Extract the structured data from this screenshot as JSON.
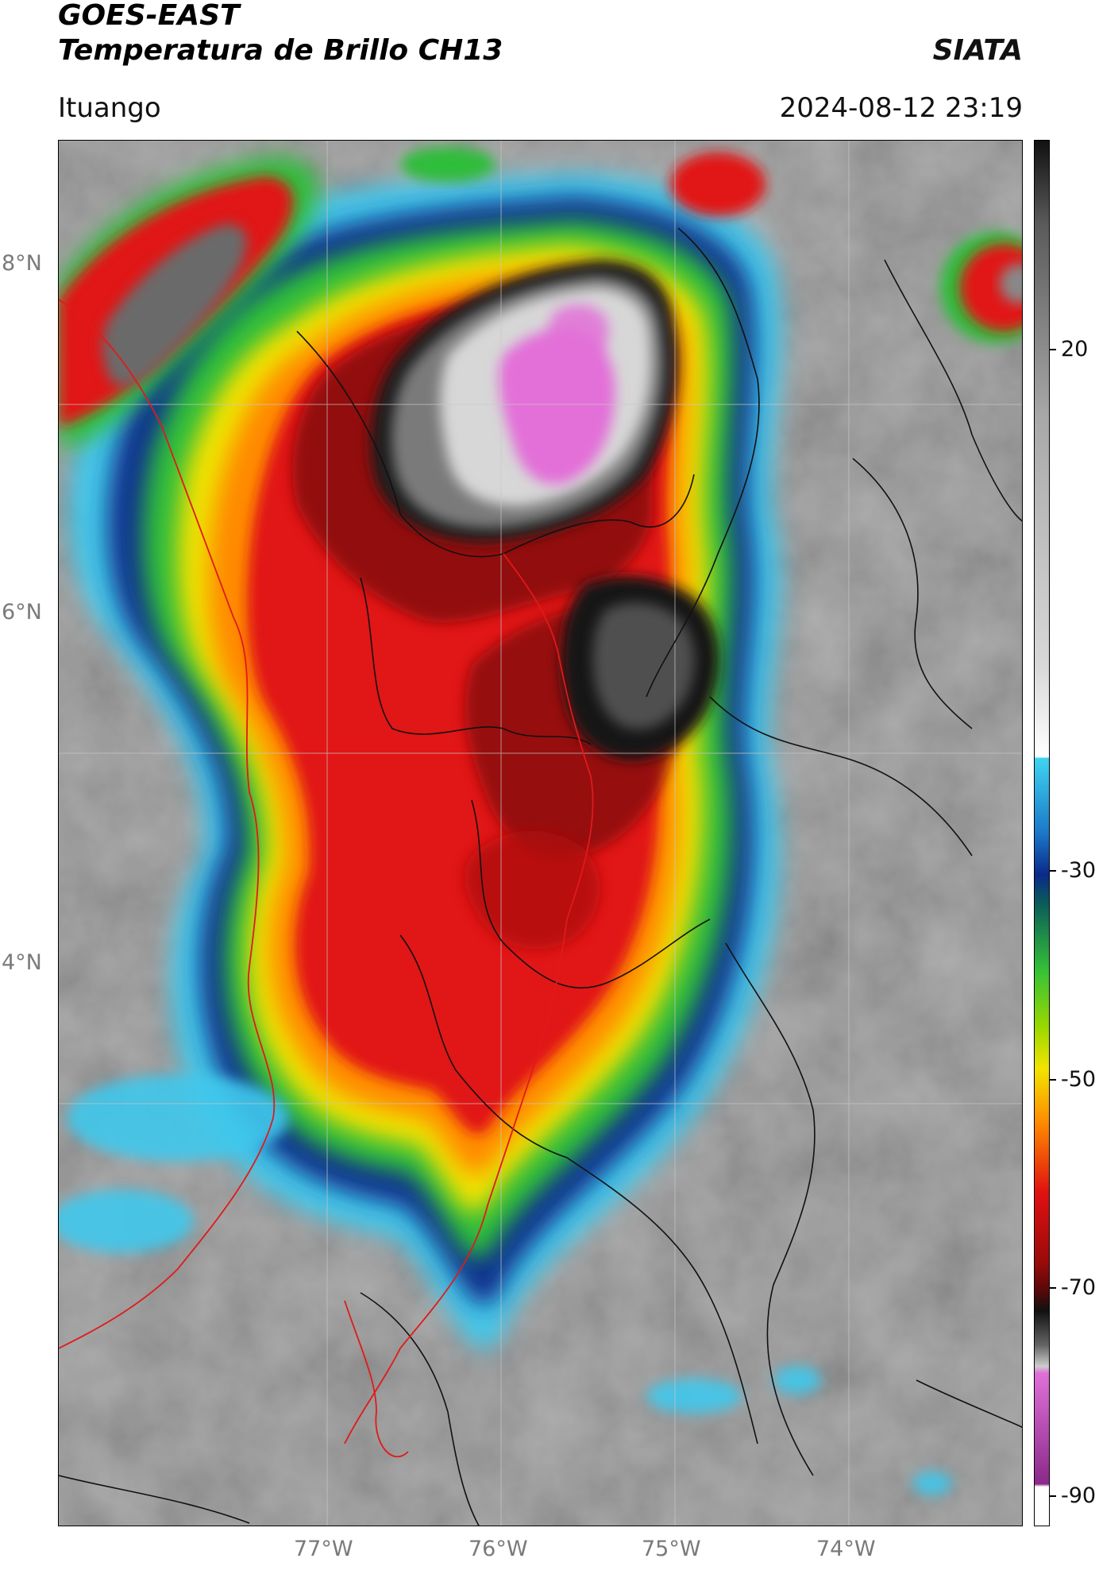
{
  "header": {
    "satellite": "GOES-EAST",
    "product": "Temperatura de Brillo CH13",
    "organization": "SIATA",
    "location": "Ituango",
    "timestamp": "2024-08-12 23:19"
  },
  "map": {
    "lat_labels": [
      "8°N",
      "6°N",
      "4°N"
    ],
    "lon_labels": [
      "77°W",
      "76°W",
      "75°W",
      "74°W"
    ],
    "extent": {
      "lon_min": -78.55,
      "lon_max": -73.0,
      "lat_min": 2.55,
      "lat_max": 9.55
    },
    "gridlines": true
  },
  "colorbar": {
    "tick_labels": [
      "20",
      "-30",
      "-50",
      "-70",
      "-90"
    ],
    "tick_values": [
      20,
      -30,
      -50,
      -70,
      -90
    ],
    "range": [
      -92,
      41
    ],
    "colors": {
      "warm_gray": "#a8a8a8",
      "cyan": "#3fd4f0",
      "dark_blue": "#0a2a8a",
      "green": "#36c236",
      "yellow": "#f2e400",
      "orange": "#ff8800",
      "red": "#e01010",
      "dark_red": "#5a0808",
      "black": "#111111",
      "magenta": "#e070d8",
      "purple": "#8a2a8a"
    }
  }
}
